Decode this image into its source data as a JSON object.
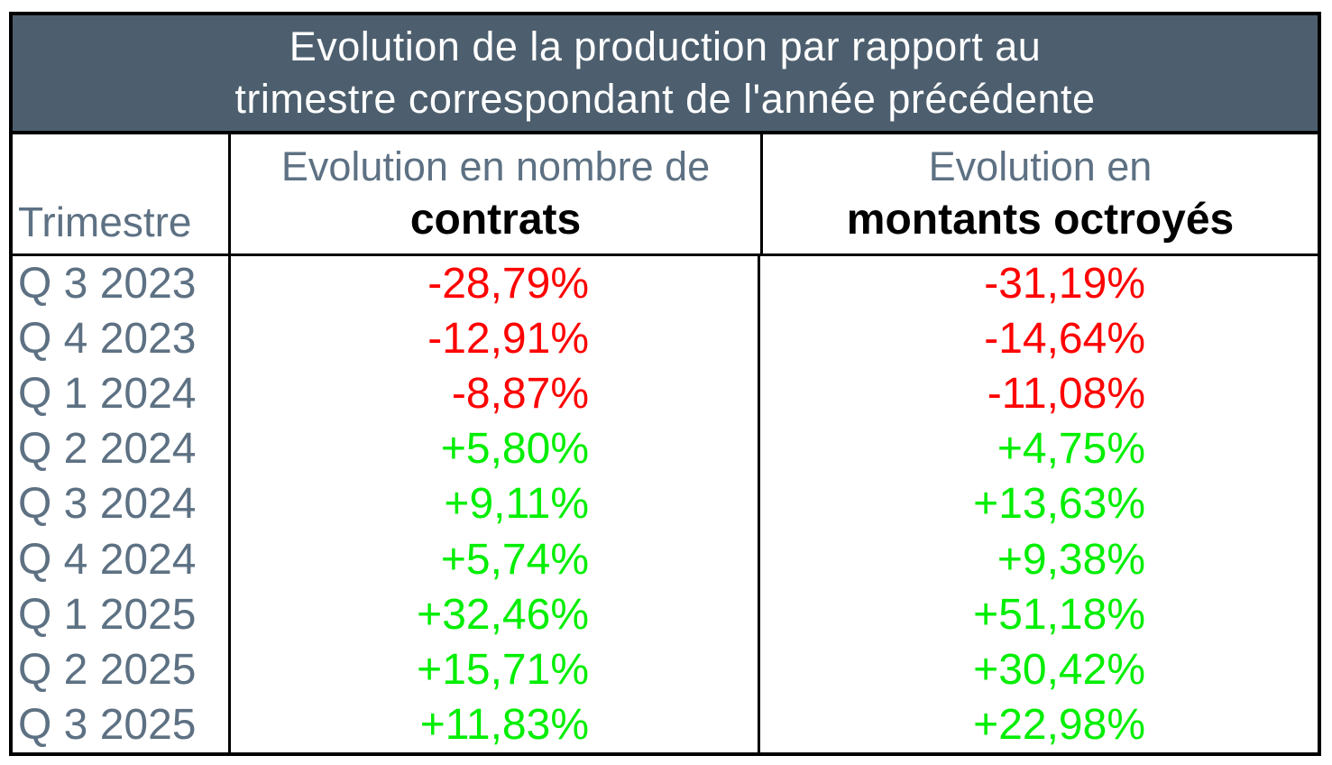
{
  "title": {
    "line1": "Evolution de la production par rapport au",
    "line2": "trimestre correspondant de l'année précédente"
  },
  "columns": {
    "quarter_label": "Trimestre",
    "contracts_top": "Evolution en nombre de",
    "contracts_bottom": "contrats",
    "amounts_top": "Evolution en",
    "amounts_bottom": "montants octroyés"
  },
  "rows": [
    {
      "quarter": "Q 3 2023",
      "contracts": "-28,79%",
      "amounts": "-31,19%",
      "contracts_tone": "neg",
      "amounts_tone": "neg"
    },
    {
      "quarter": "Q 4 2023",
      "contracts": "-12,91%",
      "amounts": "-14,64%",
      "contracts_tone": "neg",
      "amounts_tone": "neg"
    },
    {
      "quarter": "Q 1 2024",
      "contracts": "-8,87%",
      "amounts": "-11,08%",
      "contracts_tone": "neg",
      "amounts_tone": "neg"
    },
    {
      "quarter": "Q 2 2024",
      "contracts": "+5,80%",
      "amounts": "+4,75%",
      "contracts_tone": "pos",
      "amounts_tone": "pos"
    },
    {
      "quarter": "Q 3 2024",
      "contracts": "+9,11%",
      "amounts": "+13,63%",
      "contracts_tone": "pos",
      "amounts_tone": "pos"
    },
    {
      "quarter": "Q 4 2024",
      "contracts": "+5,74%",
      "amounts": "+9,38%",
      "contracts_tone": "pos",
      "amounts_tone": "pos"
    },
    {
      "quarter": "Q 1 2025",
      "contracts": "+32,46%",
      "amounts": "+51,18%",
      "contracts_tone": "pos",
      "amounts_tone": "pos"
    },
    {
      "quarter": "Q 2 2025",
      "contracts": "+15,71%",
      "amounts": "+30,42%",
      "contracts_tone": "pos",
      "amounts_tone": "pos"
    },
    {
      "quarter": "Q 3 2025",
      "contracts": "+11,83%",
      "amounts": "+22,98%",
      "contracts_tone": "pos",
      "amounts_tone": "pos"
    }
  ],
  "colors": {
    "title_background": "#4D5F6E",
    "title_text": "#FFFFFF",
    "muted_text": "#5D7183",
    "bold_text": "#000000",
    "negative": "#FF0000",
    "positive": "#00EE00",
    "border": "#000000"
  },
  "chart_data": {
    "type": "table",
    "title": "Evolution de la production par rapport au trimestre correspondant de l'année précédente",
    "categories": [
      "Q 3 2023",
      "Q 4 2023",
      "Q 1 2024",
      "Q 2 2024",
      "Q 3 2024",
      "Q 4 2024",
      "Q 1 2025",
      "Q 2 2025",
      "Q 3 2025"
    ],
    "series": [
      {
        "name": "Evolution en nombre de contrats",
        "unit": "%",
        "values": [
          -28.79,
          -12.91,
          -8.87,
          5.8,
          9.11,
          5.74,
          32.46,
          15.71,
          11.83
        ]
      },
      {
        "name": "Evolution en montants octroyés",
        "unit": "%",
        "values": [
          -31.19,
          -14.64,
          -11.08,
          4.75,
          13.63,
          9.38,
          51.18,
          30.42,
          22.98
        ]
      }
    ],
    "value_color_rule": "negative values red, positive values green"
  }
}
